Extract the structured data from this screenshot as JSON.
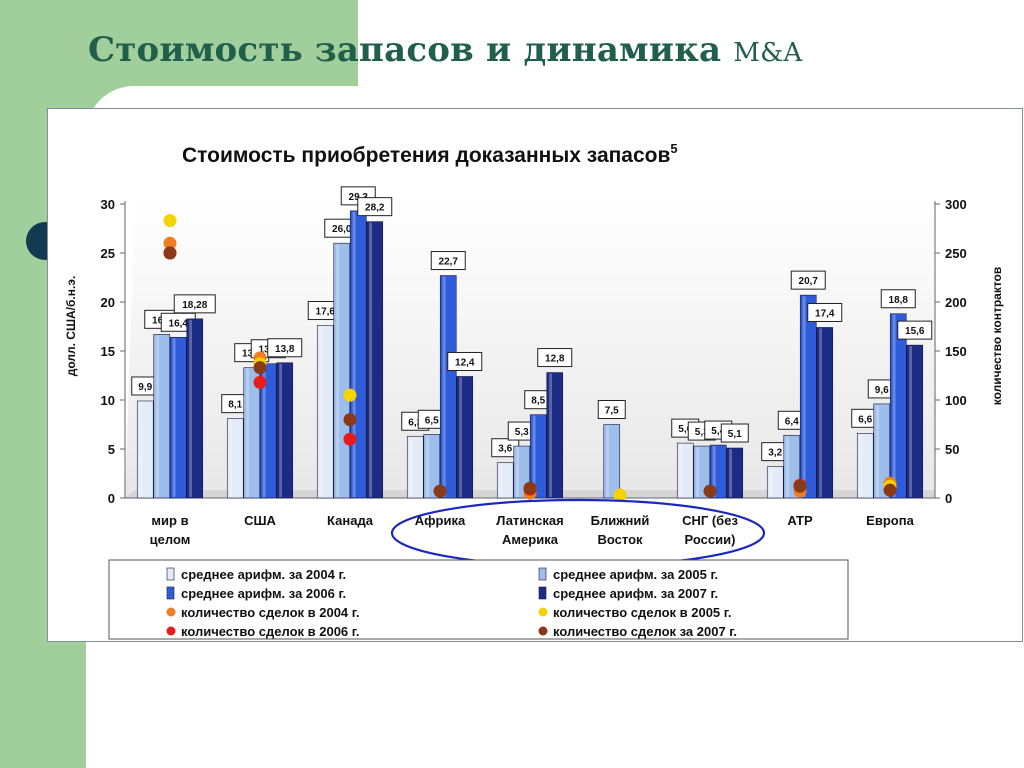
{
  "slide": {
    "title": "Стоимость запасов и динамика",
    "title_suffix": "M&A"
  },
  "chart_data": {
    "type": "bar",
    "title": "Стоимость приобретения доказанных запасов",
    "title_superscript": "5",
    "ylabel": "долл. США/б.н.э.",
    "y2label": "количество контрактов",
    "ylim": [
      0,
      30
    ],
    "y2lim": [
      0,
      300
    ],
    "yticks": [
      0,
      5,
      10,
      15,
      20,
      25,
      30
    ],
    "y2ticks": [
      0,
      50,
      100,
      150,
      200,
      250,
      300
    ],
    "grid": false,
    "legend_placement": "bottom",
    "categories": [
      [
        "мир в",
        "целом"
      ],
      [
        "США"
      ],
      [
        "Канада"
      ],
      [
        "Африка"
      ],
      [
        "Латинская",
        "Америка"
      ],
      [
        "Ближний",
        "Восток"
      ],
      [
        "СНГ (без",
        "России)"
      ],
      [
        "АТР"
      ],
      [
        "Европа"
      ]
    ],
    "series": [
      {
        "name": "среднее арифм. за 2004 г.",
        "color": "#e3ebf7",
        "values": [
          9.9,
          8.1,
          17.6,
          6.3,
          3.6,
          null,
          5.6,
          3.2,
          6.6
        ],
        "labels": [
          "9,9",
          "8,1",
          "17,6",
          "6,3",
          "3,6",
          null,
          "5,6",
          "3,2",
          "6,6"
        ]
      },
      {
        "name": "среднее арифм. за 2005 г.",
        "color": "#9dbdea",
        "values": [
          16.7,
          13.3,
          26.0,
          6.5,
          5.3,
          7.5,
          5.3,
          6.4,
          9.6
        ],
        "labels": [
          "16,7",
          "13,3",
          "26,0",
          "6,5",
          "5,3",
          "7,5",
          "5,3",
          "6,4",
          "9,6"
        ]
      },
      {
        "name": "среднее арифм. за 2006 г.",
        "color": "#2f5cd9",
        "values": [
          16.4,
          13.7,
          29.3,
          22.7,
          8.5,
          null,
          5.4,
          20.7,
          18.8
        ],
        "labels": [
          "16,4",
          "13,7",
          "29,3",
          "22,7",
          "8,5",
          null,
          "5,4",
          "20,7",
          "18,8"
        ]
      },
      {
        "name": "среднее арифм. за 2007 г.",
        "color": "#1c2b86",
        "values": [
          18.28,
          13.8,
          28.2,
          12.4,
          12.8,
          null,
          5.1,
          17.4,
          15.6
        ],
        "labels": [
          "18,28",
          "13,8",
          "28,2",
          "12,4",
          "12,8",
          null,
          "5,1",
          "17,4",
          "15,6"
        ]
      }
    ],
    "deal_series": [
      {
        "name": "количество сделок в 2004 г.",
        "color": "#f17d22",
        "values": [
          260,
          143,
          null,
          null,
          5,
          null,
          null,
          7,
          15
        ]
      },
      {
        "name": "количество сделок в 2005 г.",
        "color": "#f5d200",
        "values": [
          283,
          137,
          105,
          null,
          null,
          3,
          null,
          null,
          12
        ]
      },
      {
        "name": "количество сделок в 2006 г.",
        "color": "#ea1b1b",
        "values": [
          250,
          118,
          60,
          null,
          9,
          null,
          null,
          13,
          null
        ]
      },
      {
        "name": "количество сделок за 2007 г.",
        "color": "#8b3a18",
        "values": [
          250,
          133,
          80,
          7,
          10,
          null,
          7,
          12,
          8
        ]
      }
    ],
    "annotations": [
      "ellipse around Африка, Латинская Америка, Ближний Восток, СНГ (без России)"
    ]
  }
}
